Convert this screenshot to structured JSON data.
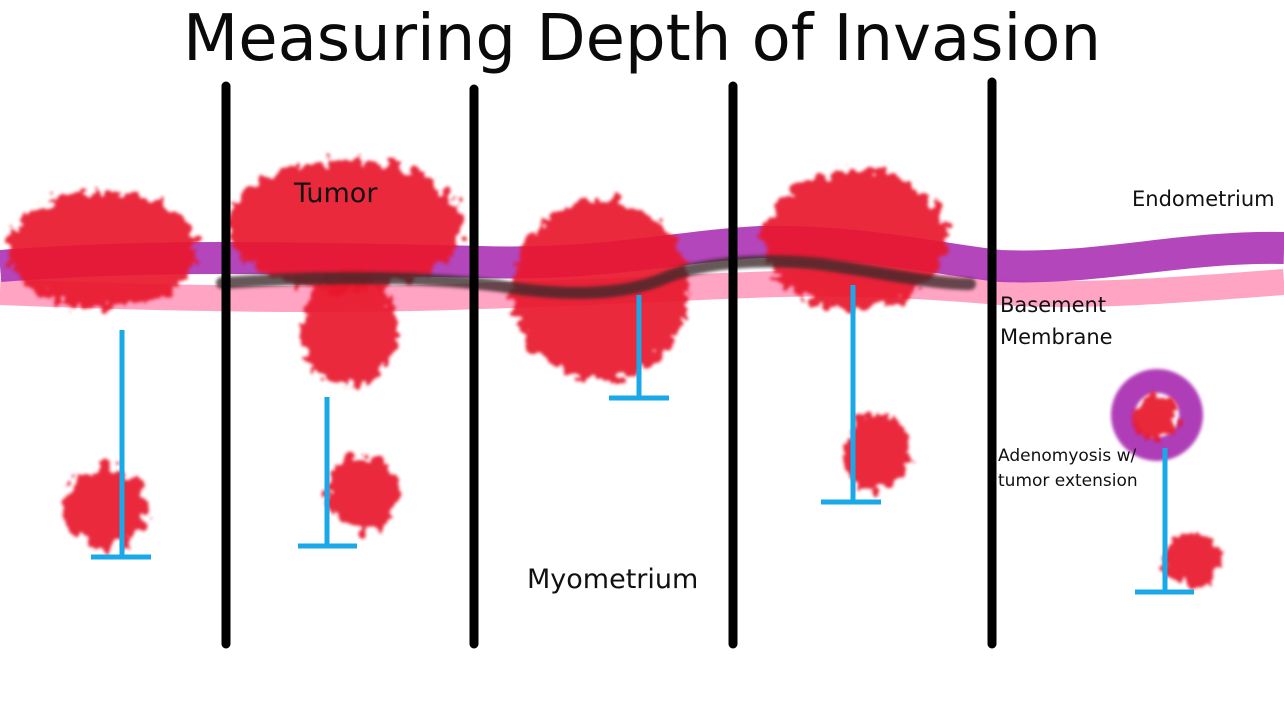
{
  "title": "Measuring Depth of Invasion",
  "labels": {
    "tumor": "Tumor",
    "endometrium": "Endometrium",
    "basement_membrane_line1": "Basement",
    "basement_membrane_line2": "Membrane",
    "myometrium": "Myometrium",
    "adenomyosis_line1": "Adenomyosis w/",
    "adenomyosis_line2": "tumor extension"
  },
  "colors": {
    "tumor": "#e8192c",
    "endometrium": "#b03cb8",
    "basement_membrane": "#ff9fc0",
    "membrane_line": "#3a2a2a",
    "measure": "#19a8e8",
    "divider": "#000000"
  }
}
